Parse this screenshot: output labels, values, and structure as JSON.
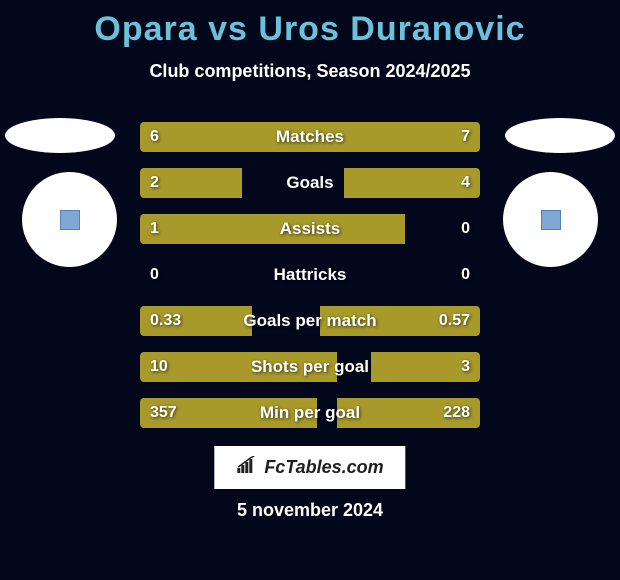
{
  "title": "Opara vs Uros Duranovic",
  "subtitle": "Club competitions, Season 2024/2025",
  "colors": {
    "background": "#03071c",
    "title": "#6cc0d7",
    "text": "#ffffff",
    "bar": "#a89a2a",
    "branding_bg": "#ffffff",
    "branding_text": "#202020"
  },
  "stats": [
    {
      "label": "Matches",
      "left_value": "6",
      "right_value": "7",
      "left_pct": 46,
      "right_pct": 54
    },
    {
      "label": "Goals",
      "left_value": "2",
      "right_value": "4",
      "left_pct": 30,
      "right_pct": 40
    },
    {
      "label": "Assists",
      "left_value": "1",
      "right_value": "0",
      "left_pct": 78,
      "right_pct": 0
    },
    {
      "label": "Hattricks",
      "left_value": "0",
      "right_value": "0",
      "left_pct": 0,
      "right_pct": 0
    },
    {
      "label": "Goals per match",
      "left_value": "0.33",
      "right_value": "0.57",
      "left_pct": 33,
      "right_pct": 47
    },
    {
      "label": "Shots per goal",
      "left_value": "10",
      "right_value": "3",
      "left_pct": 58,
      "right_pct": 32
    },
    {
      "label": "Min per goal",
      "left_value": "357",
      "right_value": "228",
      "left_pct": 52,
      "right_pct": 42
    }
  ],
  "branding": "FcTables.com",
  "date": "5 november 2024"
}
